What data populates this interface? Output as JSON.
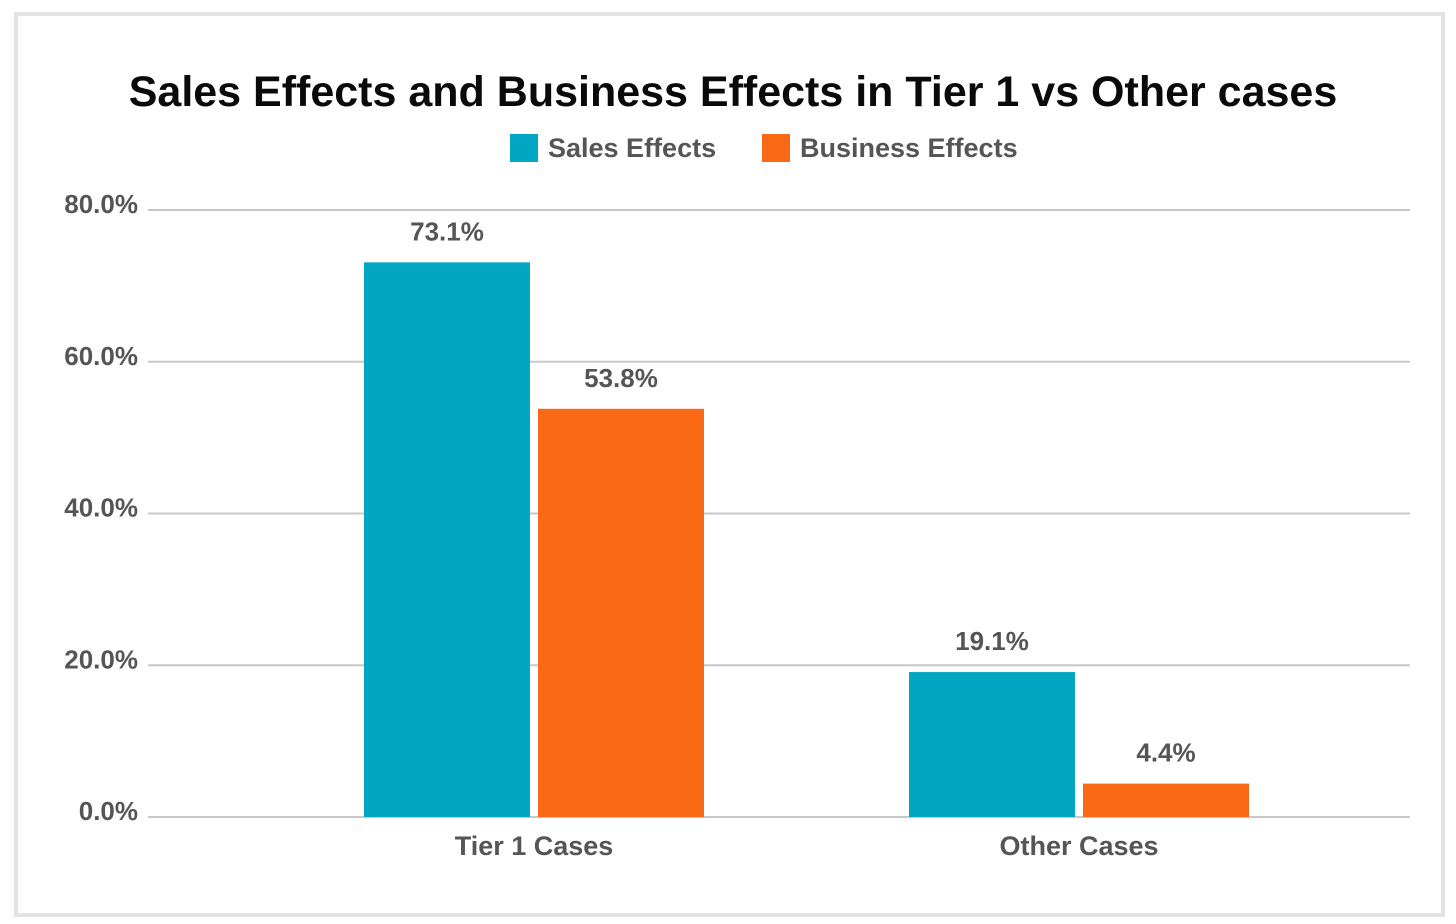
{
  "chart_data": {
    "type": "bar",
    "title": "Sales Effects and Business Effects in Tier 1 vs Other cases",
    "categories": [
      "Tier 1 Cases",
      "Other Cases"
    ],
    "series": [
      {
        "name": "Sales Effects",
        "color": "#00A6C2",
        "values": [
          73.1,
          19.1
        ],
        "labels": [
          "73.1%",
          "19.1%"
        ]
      },
      {
        "name": "Business Effects",
        "color": "#F96815",
        "values": [
          53.8,
          4.4
        ],
        "labels": [
          "53.8%",
          "4.4%"
        ]
      }
    ],
    "yticks": [
      0,
      20,
      40,
      60,
      80
    ],
    "ytick_labels": [
      "0.0%",
      "20.0%",
      "40.0%",
      "60.0%",
      "80.0%"
    ],
    "ylim": [
      0,
      80
    ],
    "xlabel": "",
    "ylabel": "",
    "legend_position": "top-center",
    "grid": true
  }
}
